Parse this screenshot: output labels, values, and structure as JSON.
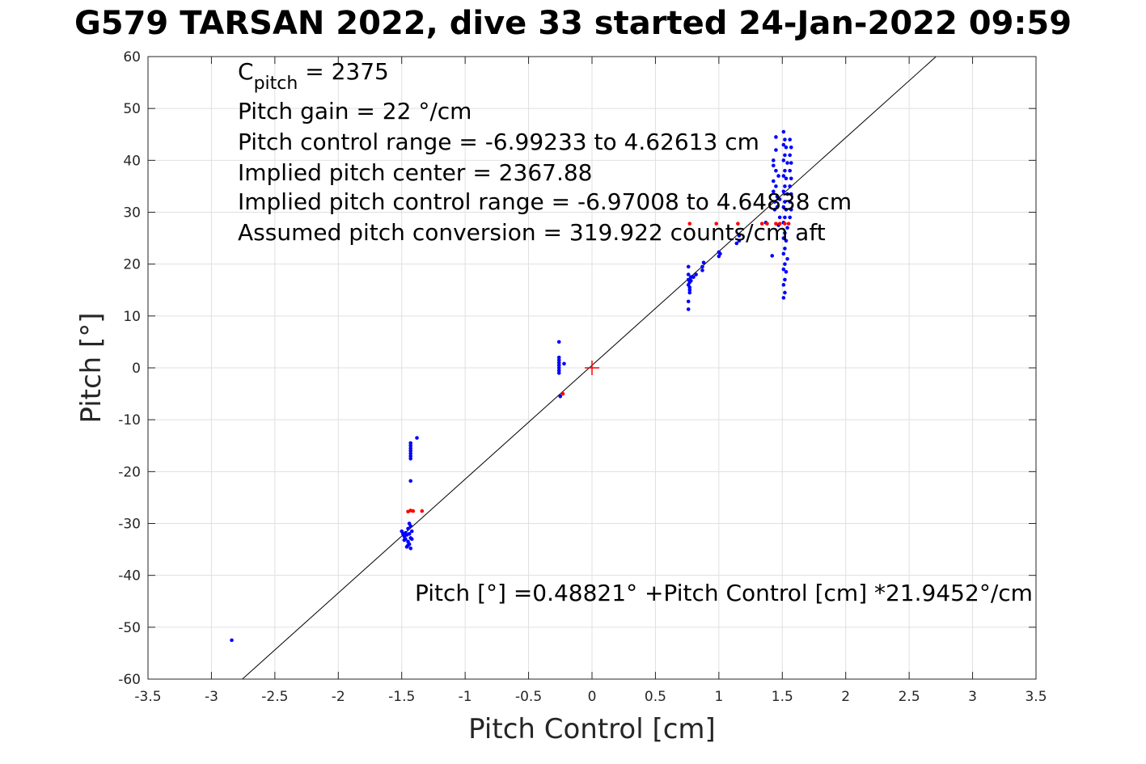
{
  "chart_data": {
    "type": "scatter",
    "title": "G579 TARSAN 2022, dive 33 started 24-Jan-2022 09:59",
    "xlabel": "Pitch Control [cm]",
    "ylabel": "Pitch [°]",
    "xlim": [
      -3.5,
      3.5
    ],
    "ylim": [
      -60,
      60
    ],
    "xticks": [
      -3.5,
      -3,
      -2.5,
      -2,
      -1.5,
      -1,
      -0.5,
      0,
      0.5,
      1,
      1.5,
      2,
      2.5,
      3,
      3.5
    ],
    "xtick_labels": [
      "-3.5",
      "-3",
      "-2.5",
      "-2",
      "-1.5",
      "-1",
      "-0.5",
      "0",
      "0.5",
      "1",
      "1.5",
      "2",
      "2.5",
      "3",
      "3.5"
    ],
    "yticks": [
      -60,
      -50,
      -40,
      -30,
      -20,
      -10,
      0,
      10,
      20,
      30,
      40,
      50,
      60
    ],
    "ytick_labels": [
      "-60",
      "-50",
      "-40",
      "-30",
      "-20",
      "-10",
      "0",
      "10",
      "20",
      "30",
      "40",
      "50",
      "60"
    ],
    "grid": true,
    "colors": {
      "good": "#0000ff",
      "flagged": "#ff0000",
      "fit": "#000000",
      "center": "#ff0000",
      "grid": "#e0e0e0"
    },
    "annotations": {
      "cpitch_main": "C",
      "cpitch_sub": "pitch",
      "cpitch_value": " = 2375",
      "pitch_gain": "Pitch gain = 22 °/cm",
      "control_range": "Pitch control range = -6.99233 to 4.62613 cm",
      "implied_center": "Implied pitch center = 2367.88",
      "implied_range": "Implied pitch control range = -6.97008 to 4.64838 cm",
      "conversion": "Assumed pitch conversion = 319.922 counts/cm aft",
      "fit_equation": "Pitch [°] =0.48821° +Pitch Control [cm] *21.9452°/cm"
    },
    "fit_line": {
      "intercept": 0.48821,
      "slope": 21.9452
    },
    "center_marker": {
      "x": 0,
      "y": 0
    },
    "series_good": [
      [
        -2.84,
        -52.5
      ],
      [
        -1.5,
        -31.5
      ],
      [
        -1.49,
        -32.0
      ],
      [
        -1.48,
        -32.5
      ],
      [
        -1.47,
        -33.0
      ],
      [
        -1.46,
        -32.2
      ],
      [
        -1.45,
        -31.0
      ],
      [
        -1.45,
        -33.5
      ],
      [
        -1.44,
        -34.0
      ],
      [
        -1.44,
        -32.0
      ],
      [
        -1.43,
        -30.5
      ],
      [
        -1.43,
        -34.8
      ],
      [
        -1.42,
        -31.5
      ],
      [
        -1.42,
        -33.0
      ],
      [
        -1.46,
        -34.5
      ],
      [
        -1.47,
        -31.8
      ],
      [
        -1.44,
        -30.0
      ],
      [
        -1.43,
        -32.8
      ],
      [
        -1.45,
        -34.2
      ],
      [
        -1.48,
        -33.2
      ],
      [
        -1.43,
        -14.5
      ],
      [
        -1.43,
        -15.5
      ],
      [
        -1.43,
        -16.5
      ],
      [
        -1.43,
        -17.5
      ],
      [
        -1.43,
        -15.0
      ],
      [
        -1.43,
        -16.0
      ],
      [
        -1.43,
        -17.0
      ],
      [
        -1.43,
        -21.8
      ],
      [
        -1.38,
        -13.5
      ],
      [
        -0.26,
        5.0
      ],
      [
        -0.26,
        2.0
      ],
      [
        -0.26,
        1.5
      ],
      [
        -0.26,
        1.0
      ],
      [
        -0.26,
        0.5
      ],
      [
        -0.26,
        0.0
      ],
      [
        -0.26,
        -0.5
      ],
      [
        -0.26,
        -1.0
      ],
      [
        -0.25,
        -5.5
      ],
      [
        -0.22,
        0.8
      ],
      [
        0.76,
        19.5
      ],
      [
        0.76,
        18.0
      ],
      [
        0.76,
        17.0
      ],
      [
        0.76,
        16.0
      ],
      [
        0.77,
        15.5
      ],
      [
        0.77,
        16.5
      ],
      [
        0.77,
        15.0
      ],
      [
        0.78,
        17.5
      ],
      [
        0.78,
        16.8
      ],
      [
        0.76,
        12.8
      ],
      [
        0.76,
        11.3
      ],
      [
        0.77,
        14.5
      ],
      [
        0.8,
        17.5
      ],
      [
        0.82,
        18.0
      ],
      [
        0.87,
        18.8
      ],
      [
        0.87,
        19.5
      ],
      [
        0.88,
        20.3
      ],
      [
        1.0,
        21.5
      ],
      [
        1.0,
        22.3
      ],
      [
        1.01,
        22.0
      ],
      [
        1.14,
        24.0
      ],
      [
        1.16,
        24.5
      ],
      [
        1.16,
        25.5
      ],
      [
        1.37,
        28.0
      ],
      [
        1.42,
        21.6
      ],
      [
        1.43,
        40.0
      ],
      [
        1.43,
        39.0
      ],
      [
        1.43,
        36.0
      ],
      [
        1.43,
        34.0
      ],
      [
        1.44,
        32.0
      ],
      [
        1.44,
        30.5
      ],
      [
        1.45,
        44.5
      ],
      [
        1.45,
        42.0
      ],
      [
        1.45,
        38.0
      ],
      [
        1.45,
        35.0
      ],
      [
        1.46,
        33.0
      ],
      [
        1.46,
        31.0
      ],
      [
        1.47,
        37.0
      ],
      [
        1.47,
        27.5
      ],
      [
        1.48,
        29.0
      ],
      [
        1.48,
        32.5
      ],
      [
        1.51,
        45.5
      ],
      [
        1.51,
        43.0
      ],
      [
        1.51,
        40.0
      ],
      [
        1.51,
        37.0
      ],
      [
        1.51,
        34.0
      ],
      [
        1.51,
        31.0
      ],
      [
        1.51,
        28.0
      ],
      [
        1.51,
        25.0
      ],
      [
        1.51,
        22.0
      ],
      [
        1.51,
        19.0
      ],
      [
        1.51,
        16.0
      ],
      [
        1.51,
        13.5
      ],
      [
        1.52,
        44.0
      ],
      [
        1.52,
        41.0
      ],
      [
        1.52,
        38.0
      ],
      [
        1.52,
        35.0
      ],
      [
        1.52,
        32.0
      ],
      [
        1.52,
        29.0
      ],
      [
        1.52,
        26.0
      ],
      [
        1.52,
        23.0
      ],
      [
        1.52,
        20.0
      ],
      [
        1.52,
        17.0
      ],
      [
        1.52,
        14.5
      ],
      [
        1.53,
        42.5
      ],
      [
        1.53,
        36.5
      ],
      [
        1.53,
        30.5
      ],
      [
        1.53,
        24.5
      ],
      [
        1.53,
        18.5
      ],
      [
        1.54,
        39.5
      ],
      [
        1.54,
        33.5
      ],
      [
        1.54,
        27.0
      ],
      [
        1.54,
        21.0
      ],
      [
        1.56,
        44.0
      ],
      [
        1.56,
        41.0
      ],
      [
        1.56,
        38.0
      ],
      [
        1.56,
        35.0
      ],
      [
        1.56,
        32.0
      ],
      [
        1.56,
        29.0
      ],
      [
        1.57,
        42.5
      ],
      [
        1.57,
        39.5
      ],
      [
        1.57,
        36.5
      ],
      [
        1.57,
        33.5
      ],
      [
        1.57,
        30.5
      ]
    ],
    "series_flagged": [
      [
        -1.45,
        -27.7
      ],
      [
        -1.43,
        -27.5
      ],
      [
        -1.41,
        -27.6
      ],
      [
        -1.34,
        -27.6
      ],
      [
        -0.23,
        -5.0
      ],
      [
        0.77,
        27.8
      ],
      [
        0.98,
        27.8
      ],
      [
        1.15,
        27.8
      ],
      [
        1.34,
        27.8
      ],
      [
        1.38,
        27.8
      ],
      [
        1.45,
        27.8
      ],
      [
        1.48,
        27.8
      ],
      [
        1.52,
        27.8
      ],
      [
        1.55,
        27.8
      ]
    ]
  }
}
